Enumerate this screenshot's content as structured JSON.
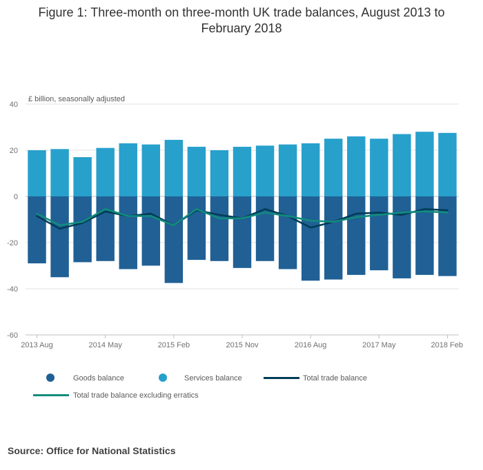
{
  "colors": {
    "goods": "#206095",
    "services": "#27a0cc",
    "total": "#003c57",
    "excl": "#118c7b",
    "grid": "#e0e0e0",
    "axis": "#bdbdbd"
  },
  "chart_data": {
    "type": "bar",
    "title": "Figure 1: Three-month on three-month UK trade balances, August 2013 to February 2018",
    "ylabel": "£ billion, seasonally adjusted",
    "ylim": [
      -60,
      40
    ],
    "yticks": [
      "40",
      "20",
      "0",
      "-20",
      "-40",
      "-60"
    ],
    "ytick_values": [
      40,
      20,
      0,
      -20,
      -40,
      -60
    ],
    "categories": [
      "2013 Aug",
      "2013 Nov",
      "2014 Feb",
      "2014 May",
      "2014 Aug",
      "2014 Nov",
      "2015 Feb",
      "2015 May",
      "2015 Aug",
      "2015 Nov",
      "2016 Feb",
      "2016 May",
      "2016 Aug",
      "2016 Nov",
      "2017 Feb",
      "2017 May",
      "2017 Aug",
      "2017 Nov",
      "2018 Feb"
    ],
    "xtick_labels": [
      {
        "index": 0,
        "label": "2013 Aug"
      },
      {
        "index": 3,
        "label": "2014 May"
      },
      {
        "index": 6,
        "label": "2015 Feb"
      },
      {
        "index": 9,
        "label": "2015 Nov"
      },
      {
        "index": 12,
        "label": "2016 Aug"
      },
      {
        "index": 15,
        "label": "2017 May"
      },
      {
        "index": 18,
        "label": "2018 Feb"
      }
    ],
    "series": [
      {
        "name": "Goods balance",
        "kind": "bar",
        "values": [
          -29,
          -35,
          -28.5,
          -28,
          -31.5,
          -30,
          -37.5,
          -27.5,
          -28,
          -31,
          -28,
          -31.5,
          -36.5,
          -36,
          -34,
          -32,
          -35.5,
          -34,
          -34.5
        ]
      },
      {
        "name": "Services balance",
        "kind": "bar",
        "values": [
          20,
          20.5,
          17,
          21,
          23,
          22.5,
          24.5,
          21.5,
          20,
          21.5,
          22,
          22.5,
          23,
          25,
          26,
          25,
          27,
          28,
          27.5
        ]
      },
      {
        "name": "Total trade balance",
        "kind": "line",
        "values": [
          -8.5,
          -14,
          -11.5,
          -6.5,
          -8.5,
          -7.5,
          -12.5,
          -6,
          -8,
          -9.5,
          -5.5,
          -8.5,
          -13.5,
          -11,
          -7.5,
          -7,
          -8,
          -5.5,
          -6
        ]
      },
      {
        "name": "Total trade balance excluding erratics",
        "kind": "line",
        "values": [
          -7.5,
          -12.5,
          -11,
          -5.5,
          -8.5,
          -8.5,
          -12.5,
          -5.5,
          -9.5,
          -9.5,
          -7,
          -8.5,
          -10.5,
          -11,
          -9,
          -8,
          -7,
          -6.5,
          -7
        ]
      }
    ]
  },
  "legend": {
    "goods": "Goods balance",
    "services": "Services balance",
    "total": "Total trade balance",
    "excl": "Total trade balance excluding erratics"
  },
  "source": "Source: Office for National Statistics"
}
